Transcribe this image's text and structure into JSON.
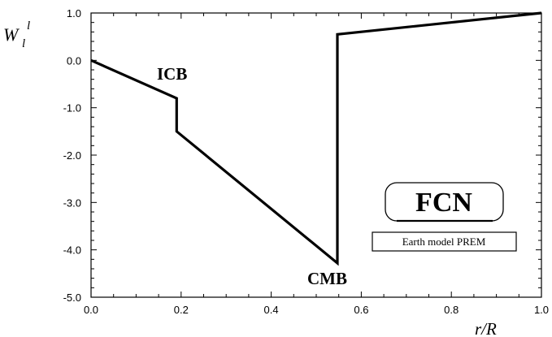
{
  "chart_data": {
    "type": "line",
    "title": "",
    "xlabel": "r/R",
    "ylabel": {
      "main": "W",
      "subscript": "l",
      "superscript": "l"
    },
    "xlim": [
      0.0,
      1.0
    ],
    "ylim": [
      -5.0,
      1.0
    ],
    "x_ticks": [
      "0.0",
      "0.2",
      "0.4",
      "0.6",
      "0.8",
      "1.0"
    ],
    "y_ticks": [
      "1.0",
      "0.0",
      "-1.0",
      "-2.0",
      "-3.0",
      "-4.0",
      "-5.0"
    ],
    "grid": false,
    "series": [
      {
        "x": [
          0.0,
          0.19,
          0.19,
          0.547,
          0.547,
          1.0
        ],
        "y": [
          0.0,
          -0.8,
          -1.5,
          -4.28,
          0.55,
          1.0
        ]
      }
    ],
    "annotations": [
      {
        "text": "ICB",
        "x": 0.19,
        "y": -0.8
      },
      {
        "text": "CMB",
        "x": 0.547,
        "y": -4.28
      }
    ],
    "boxes": {
      "title": "FCN",
      "caption": "Earth model PREM"
    }
  }
}
